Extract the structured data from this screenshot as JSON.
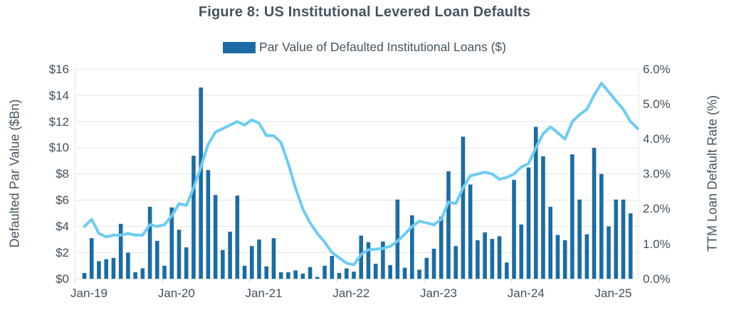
{
  "header": {
    "title": "Figure 8: US Institutional Levered Loan Defaults"
  },
  "legend": {
    "label": "Par Value of Defaulted Institutional Loans ($)",
    "swatch_color": "#1B6CA4"
  },
  "axes": {
    "left": {
      "title": "Defaulted Par Value ($Bn)",
      "tick_labels": [
        "$16",
        "$14",
        "$12",
        "$10",
        "$8",
        "$6",
        "$4",
        "$2",
        "$0"
      ]
    },
    "right": {
      "title": "TTM Loan Default Rate (%)",
      "tick_labels": [
        "6.0%",
        "5.0%",
        "4.0%",
        "3.0%",
        "2.0%",
        "1.0%",
        "0.0%"
      ]
    },
    "x": {
      "tick_labels": [
        "Jan-19",
        "Jan-20",
        "Jan-21",
        "Jan-22",
        "Jan-23",
        "Jan-24",
        "Jan-25"
      ]
    }
  },
  "colors": {
    "bar": "#1B6CA4",
    "line": "#6CCCF3",
    "grid": "#E6E6E6",
    "axis_tick": "#C7CDD4",
    "text": "#42505C",
    "title_text": "#45545F",
    "background": "#FFFFFF"
  },
  "chart_data": {
    "type": "combo",
    "title": "Figure 8: US Institutional Levered Loan Defaults",
    "grid": "horizontal",
    "legend_position": "top",
    "x": [
      "Jan-19",
      "Feb-19",
      "Mar-19",
      "Apr-19",
      "May-19",
      "Jun-19",
      "Jul-19",
      "Aug-19",
      "Sep-19",
      "Oct-19",
      "Nov-19",
      "Dec-19",
      "Jan-20",
      "Feb-20",
      "Mar-20",
      "Apr-20",
      "May-20",
      "Jun-20",
      "Jul-20",
      "Aug-20",
      "Sep-20",
      "Oct-20",
      "Nov-20",
      "Dec-20",
      "Jan-21",
      "Feb-21",
      "Mar-21",
      "Apr-21",
      "May-21",
      "Jun-21",
      "Jul-21",
      "Aug-21",
      "Sep-21",
      "Oct-21",
      "Nov-21",
      "Dec-21",
      "Jan-22",
      "Feb-22",
      "Mar-22",
      "Apr-22",
      "May-22",
      "Jun-22",
      "Jul-22",
      "Aug-22",
      "Sep-22",
      "Oct-22",
      "Nov-22",
      "Dec-22",
      "Jan-23",
      "Feb-23",
      "Mar-23",
      "Apr-23",
      "May-23",
      "Jun-23",
      "Jul-23",
      "Aug-23",
      "Sep-23",
      "Oct-23",
      "Nov-23",
      "Dec-23",
      "Jan-24",
      "Feb-24",
      "Mar-24",
      "Apr-24",
      "May-24",
      "Jun-24",
      "Jul-24",
      "Aug-24",
      "Sep-24",
      "Oct-24",
      "Nov-24",
      "Dec-24",
      "Jan-25",
      "Feb-25",
      "Mar-25",
      "Apr-25",
      "May-25"
    ],
    "left_axis": {
      "label": "Defaulted Par Value ($Bn)",
      "range": [
        0,
        16
      ],
      "tick_step": 2
    },
    "right_axis": {
      "label": "TTM Loan Default Rate (%)",
      "range": [
        0,
        6
      ],
      "tick_step": 1
    },
    "x_axis": {
      "visible_ticks": [
        "Jan-19",
        "Jan-20",
        "Jan-21",
        "Jan-22",
        "Jan-23",
        "Jan-24",
        "Jan-25"
      ]
    },
    "series": [
      {
        "name": "Par Value of Defaulted Institutional Loans ($)",
        "type": "bar",
        "axis": "left",
        "unit": "$Bn",
        "values": [
          0.45,
          3.1,
          1.35,
          1.5,
          1.6,
          4.2,
          2.0,
          0.5,
          0.8,
          5.5,
          2.9,
          1.0,
          5.45,
          3.75,
          2.4,
          9.4,
          14.6,
          8.3,
          6.4,
          2.2,
          3.6,
          6.35,
          1.0,
          2.5,
          3.0,
          0.95,
          3.1,
          0.5,
          0.5,
          0.65,
          0.4,
          0.9,
          0.15,
          1.0,
          1.75,
          0.45,
          0.8,
          0.55,
          3.3,
          2.8,
          1.15,
          2.85,
          1.05,
          6.05,
          0.85,
          4.85,
          0.7,
          1.6,
          2.3,
          4.75,
          8.2,
          2.5,
          10.85,
          7.2,
          2.95,
          3.55,
          3.05,
          3.25,
          1.25,
          7.55,
          4.15,
          8.5,
          11.6,
          9.35,
          5.5,
          3.35,
          2.95,
          9.5,
          6.05,
          3.4,
          10.0,
          8.0,
          4.0,
          6.05,
          6.05,
          5.0,
          null
        ]
      },
      {
        "name": "TTM Loan Default Rate (%)",
        "type": "line",
        "axis": "right",
        "unit": "%",
        "values": [
          1.5,
          1.7,
          1.3,
          1.2,
          1.25,
          1.25,
          1.3,
          1.25,
          1.25,
          1.55,
          1.5,
          1.55,
          1.8,
          2.15,
          2.1,
          2.6,
          3.2,
          3.85,
          4.2,
          4.3,
          4.4,
          4.5,
          4.4,
          4.55,
          4.45,
          4.1,
          4.1,
          3.9,
          3.3,
          2.6,
          2.0,
          1.6,
          1.3,
          1.05,
          0.75,
          0.6,
          0.45,
          0.4,
          0.7,
          0.83,
          0.85,
          0.87,
          0.93,
          1.08,
          1.28,
          1.5,
          1.65,
          1.6,
          1.55,
          1.7,
          2.2,
          2.15,
          2.6,
          2.95,
          3.0,
          3.05,
          3.0,
          2.85,
          2.9,
          3.0,
          3.2,
          3.3,
          3.75,
          4.15,
          4.35,
          4.18,
          4.0,
          4.5,
          4.7,
          4.85,
          5.25,
          5.6,
          5.35,
          5.1,
          4.85,
          4.5,
          4.3
        ]
      }
    ]
  }
}
